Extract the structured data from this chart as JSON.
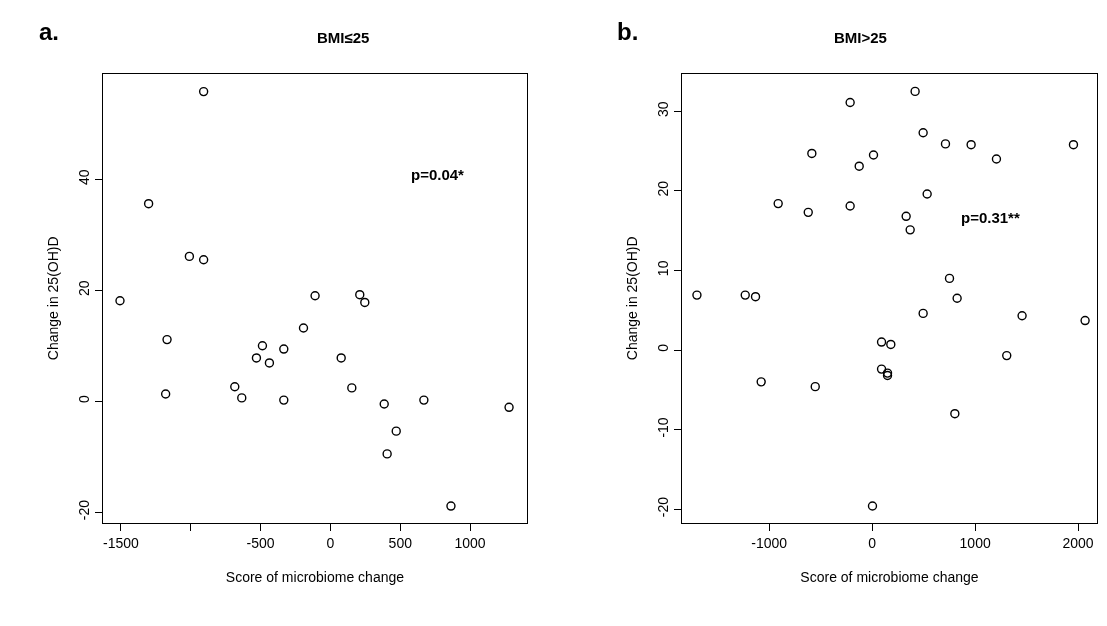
{
  "chart_data": [
    {
      "type": "scatter",
      "title": "BMI≤25",
      "xlabel": "Score of microbiome change",
      "ylabel": "Change in 25(OH)D",
      "annotations": [
        "a.",
        "p=0.04*"
      ],
      "xlim": [
        -1629,
        1407
      ],
      "ylim": [
        -21.9,
        59.0
      ],
      "xticks": [
        -1500,
        {
          "value": -1000,
          "label": null
        },
        -500,
        0,
        500,
        1000
      ],
      "yticks": [
        -20,
        0,
        20,
        40
      ],
      "marker": "circle",
      "series": [
        {
          "color": "#000000",
          "x": [
            -1507,
            -1302,
            -1180,
            -1170,
            -1010,
            -908,
            -908,
            -685,
            -635,
            -530,
            -487,
            -437,
            -334,
            -334,
            -193,
            -110,
            77,
            153,
            210,
            246,
            385,
            406,
            471,
            669,
            863,
            1279
          ],
          "values": [
            18.1,
            35.6,
            1.3,
            11.1,
            26.1,
            55.8,
            25.5,
            2.6,
            0.6,
            7.8,
            10.0,
            6.9,
            9.4,
            0.2,
            13.2,
            19.0,
            7.8,
            2.4,
            19.2,
            17.8,
            -0.5,
            -9.5,
            -5.4,
            0.2,
            -18.9,
            -1.1
          ]
        }
      ]
    },
    {
      "type": "scatter",
      "title": "BMI>25",
      "xlabel": "Score of microbiome change",
      "ylabel": "Change in 25(OH)D",
      "annotations": [
        "b.",
        "p=0.31**"
      ],
      "xlim": [
        -1848,
        2184
      ],
      "ylim": [
        -21.7,
        34.7
      ],
      "xticks": [
        -1000,
        0,
        1000,
        2000
      ],
      "yticks": [
        -20,
        -10,
        0,
        10,
        20,
        30
      ],
      "marker": "circle",
      "series": [
        {
          "color": "#000000",
          "x": [
            -1702,
            -1233,
            -1133,
            -1078,
            -913,
            -621,
            -586,
            -553,
            -214,
            -214,
            -126,
            13,
            3,
            91,
            91,
            149,
            149,
            181,
            330,
            369,
            417,
            495,
            495,
            534,
            712,
            751,
            803,
            825,
            961,
            1207,
            1307,
            1456,
            1955,
            2068
          ],
          "values": [
            6.9,
            6.9,
            6.7,
            -4.0,
            18.4,
            17.3,
            24.7,
            -4.6,
            31.1,
            18.1,
            23.1,
            24.5,
            -19.6,
            1.0,
            -2.4,
            -2.9,
            -3.2,
            0.7,
            16.8,
            15.1,
            32.5,
            27.3,
            4.6,
            19.6,
            25.9,
            9.0,
            -8.0,
            6.5,
            25.8,
            24.0,
            -0.7,
            4.3,
            25.8,
            3.7
          ]
        }
      ]
    }
  ]
}
